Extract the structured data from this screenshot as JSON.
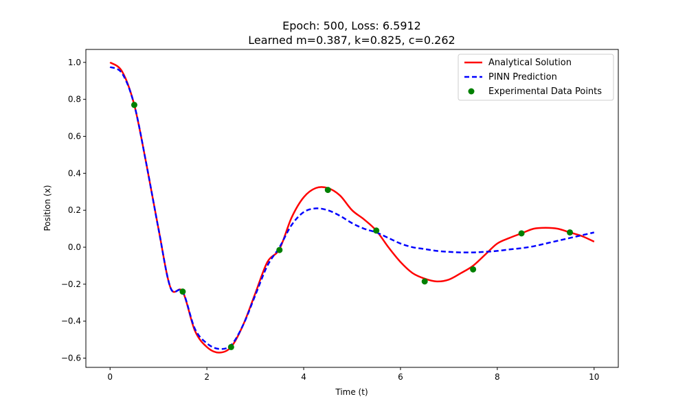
{
  "chart_data": {
    "type": "line",
    "title": [
      "Epoch: 500, Loss: 6.5912",
      "Learned m=0.387, k=0.825, c=0.262"
    ],
    "xlabel": "Time (t)",
    "ylabel": "Position (x)",
    "xlim": [
      -0.5,
      10.5
    ],
    "ylim": [
      -0.65,
      1.07
    ],
    "xticks": [
      0,
      2,
      4,
      6,
      8,
      10
    ],
    "xtick_labels": [
      "0",
      "2",
      "4",
      "6",
      "8",
      "10"
    ],
    "yticks": [
      -0.6,
      -0.4,
      -0.2,
      0.0,
      0.2,
      0.4,
      0.6,
      0.8,
      1.0
    ],
    "ytick_labels": [
      "−0.6",
      "−0.4",
      "−0.2",
      "0.0",
      "0.2",
      "0.4",
      "0.6",
      "0.8",
      "1.0"
    ],
    "grid": false,
    "legend_position": "top-right",
    "series": [
      {
        "name": "Analytical Solution",
        "kind": "line",
        "color": "#ff0000",
        "dash": "solid",
        "x": [
          0,
          0.25,
          0.5,
          0.75,
          1.0,
          1.25,
          1.5,
          1.75,
          2.0,
          2.25,
          2.5,
          2.75,
          3.0,
          3.25,
          3.5,
          3.75,
          4.0,
          4.25,
          4.5,
          4.75,
          5.0,
          5.25,
          5.5,
          5.75,
          6.0,
          6.25,
          6.5,
          6.75,
          7.0,
          7.25,
          7.5,
          7.75,
          8.0,
          8.25,
          8.5,
          8.75,
          9.0,
          9.25,
          9.5,
          9.75,
          10.0
        ],
        "y": [
          1.0,
          0.95,
          0.77,
          0.45,
          0.1,
          -0.22,
          -0.24,
          -0.45,
          -0.54,
          -0.57,
          -0.54,
          -0.42,
          -0.25,
          -0.08,
          -0.01,
          0.16,
          0.27,
          0.32,
          0.32,
          0.28,
          0.2,
          0.15,
          0.09,
          0.0,
          -0.08,
          -0.14,
          -0.17,
          -0.185,
          -0.175,
          -0.14,
          -0.1,
          -0.04,
          0.02,
          0.05,
          0.075,
          0.1,
          0.105,
          0.1,
          0.08,
          0.06,
          0.03
        ]
      },
      {
        "name": "PINN Prediction",
        "kind": "line",
        "color": "#0000ff",
        "dash": "dashed",
        "x": [
          0,
          0.25,
          0.5,
          0.75,
          1.0,
          1.25,
          1.5,
          1.75,
          2.0,
          2.25,
          2.5,
          2.75,
          3.0,
          3.25,
          3.5,
          3.75,
          4.0,
          4.25,
          4.5,
          4.75,
          5.0,
          5.25,
          5.5,
          5.75,
          6.0,
          6.25,
          6.5,
          6.75,
          7.0,
          7.25,
          7.5,
          7.75,
          8.0,
          8.25,
          8.5,
          8.75,
          9.0,
          9.25,
          9.5,
          9.75,
          10.0
        ],
        "y": [
          0.975,
          0.94,
          0.77,
          0.45,
          0.1,
          -0.22,
          -0.24,
          -0.44,
          -0.52,
          -0.55,
          -0.53,
          -0.42,
          -0.26,
          -0.1,
          0.0,
          0.12,
          0.19,
          0.21,
          0.2,
          0.17,
          0.13,
          0.1,
          0.08,
          0.05,
          0.02,
          0.0,
          -0.01,
          -0.02,
          -0.025,
          -0.028,
          -0.028,
          -0.025,
          -0.02,
          -0.012,
          -0.005,
          0.005,
          0.02,
          0.035,
          0.05,
          0.065,
          0.08
        ]
      },
      {
        "name": "Experimental Data Points",
        "kind": "scatter",
        "color": "#008000",
        "x": [
          0.5,
          1.5,
          2.5,
          3.5,
          4.5,
          5.5,
          6.5,
          7.5,
          8.5,
          9.5
        ],
        "y": [
          0.77,
          -0.24,
          -0.54,
          -0.015,
          0.31,
          0.09,
          -0.185,
          -0.12,
          0.075,
          0.08
        ]
      }
    ]
  }
}
